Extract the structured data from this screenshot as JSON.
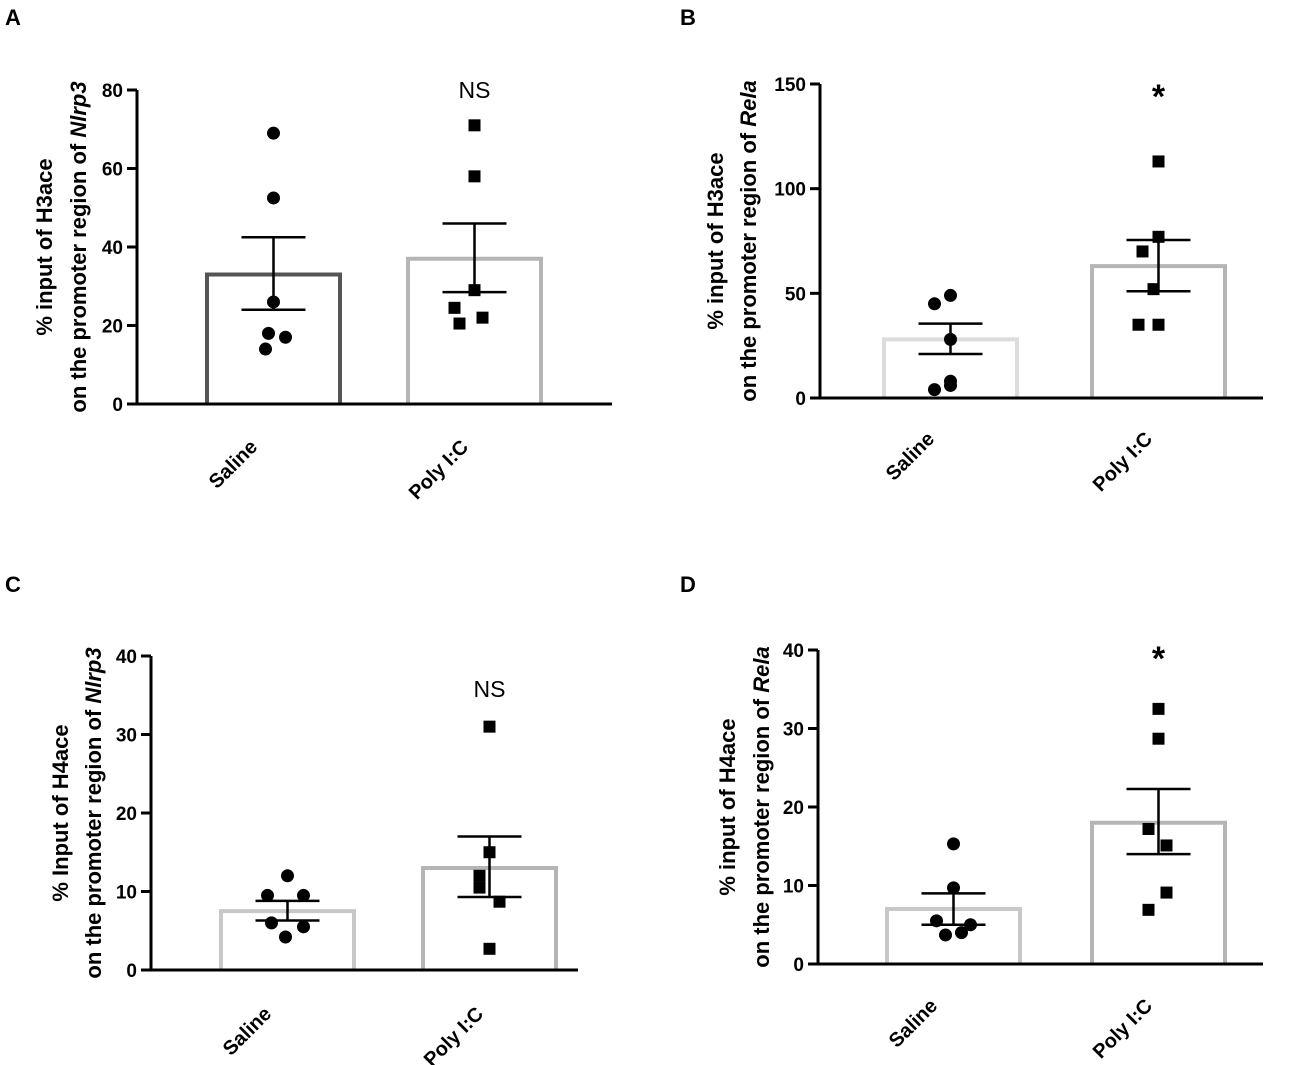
{
  "chart_data": [
    {
      "panel": "A",
      "type": "bar",
      "categories": [
        "Saline",
        "Poly I:C"
      ],
      "ylabel_line1": "% input of H3ace",
      "ylabel_line2_prefix": "on the promoter region of ",
      "ylabel_gene": "Nlrp3",
      "ylim": [
        0,
        80
      ],
      "yticks": [
        0,
        20,
        40,
        60,
        80
      ],
      "bars": [
        {
          "mean": 33,
          "sem_low": 24,
          "sem_high": 42.5,
          "color": "#555555",
          "marker": "circle",
          "points": [
            69,
            52.5,
            26,
            18,
            17,
            14
          ]
        },
        {
          "mean": 37,
          "sem_low": 28.5,
          "sem_high": 46,
          "color": "#b5b5b5",
          "marker": "square",
          "points": [
            71,
            58,
            29,
            24.5,
            22,
            20.5
          ]
        }
      ],
      "significance": "NS"
    },
    {
      "panel": "B",
      "type": "bar",
      "categories": [
        "Saline",
        "Poly I:C"
      ],
      "ylabel_line1": "% input of H3ace",
      "ylabel_line2_prefix": "on the promoter region of ",
      "ylabel_gene": "Rela",
      "ylim": [
        0,
        150
      ],
      "yticks": [
        0,
        50,
        100,
        150
      ],
      "bars": [
        {
          "mean": 28,
          "sem_low": 21,
          "sem_high": 35.5,
          "color": "#dcdcdc",
          "marker": "circle",
          "points": [
            49,
            45,
            28,
            8,
            6,
            4
          ]
        },
        {
          "mean": 63,
          "sem_low": 51,
          "sem_high": 75.5,
          "color": "#b5b5b5",
          "marker": "square",
          "points": [
            113,
            77,
            70,
            52,
            35,
            35
          ]
        }
      ],
      "significance": "*"
    },
    {
      "panel": "C",
      "type": "bar",
      "categories": [
        "Saline",
        "Poly I:C"
      ],
      "ylabel_line1": "% Input of H4ace",
      "ylabel_line2_prefix": "on the promoter region of ",
      "ylabel_gene": "Nlrp3",
      "ylim": [
        0,
        40
      ],
      "yticks": [
        0,
        10,
        20,
        30,
        40
      ],
      "bars": [
        {
          "mean": 7.5,
          "sem_low": 6.3,
          "sem_high": 8.8,
          "color": "#c8c8c8",
          "marker": "circle",
          "points": [
            12,
            9.5,
            9.5,
            6,
            5.5,
            4.2
          ]
        },
        {
          "mean": 13,
          "sem_low": 9.3,
          "sem_high": 17,
          "color": "#b5b5b5",
          "marker": "square",
          "points": [
            31,
            15,
            12,
            10.5,
            8.7,
            2.7
          ]
        }
      ],
      "significance": "NS"
    },
    {
      "panel": "D",
      "type": "bar",
      "categories": [
        "Saline",
        "Poly I:C"
      ],
      "ylabel_line1": "% input of H4ace",
      "ylabel_line2_prefix": "on the promoter region of ",
      "ylabel_gene": "Rela",
      "ylim": [
        0,
        40
      ],
      "yticks": [
        0,
        10,
        20,
        30,
        40
      ],
      "bars": [
        {
          "mean": 7,
          "sem_low": 5,
          "sem_high": 9,
          "color": "#c8c8c8",
          "marker": "circle",
          "points": [
            15.3,
            9.7,
            5.5,
            5,
            4,
            3.7
          ]
        },
        {
          "mean": 18,
          "sem_low": 14,
          "sem_high": 22.3,
          "color": "#b5b5b5",
          "marker": "square",
          "points": [
            32.5,
            28.7,
            17.2,
            15.1,
            9.1,
            6.9
          ]
        }
      ],
      "significance": "*"
    }
  ]
}
